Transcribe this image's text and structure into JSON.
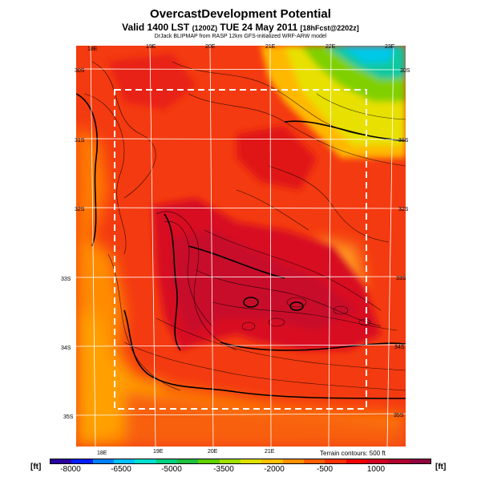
{
  "title": "OvercastDevelopment Potential",
  "subtitle_main": "Valid 1400 LST",
  "subtitle_utc": "(1200Z)",
  "subtitle_date": "TUE 24 May 2011",
  "subtitle_fcst": "[18hFcst@2202z]",
  "credit": "DrJack BLIPMAP from RASP 12km GFS-initialized WRF-ARW model",
  "terrain_note": "Terrain contours: 500 ft",
  "unit_left": "[ft]",
  "unit_right": "[ft]",
  "top_lon_labels": [
    "18E",
    "19E",
    "20E",
    "21E",
    "22E",
    "23E"
  ],
  "bottom_lon_labels": [
    "18E",
    "19E",
    "20E",
    "21E"
  ],
  "left_lat_labels": [
    "30S",
    "31S",
    "32S",
    "33S",
    "34S",
    "35S"
  ],
  "right_lat_labels": [
    "30S",
    "31S",
    "32S",
    "33S",
    "34S",
    "35S"
  ],
  "colorbar": {
    "labels": [
      "-8000",
      "-6500",
      "-5000",
      "-3500",
      "-2000",
      "-500",
      "1000"
    ],
    "colors": [
      "#2a00a0",
      "#0020ff",
      "#0080ff",
      "#00c0ff",
      "#00e0d0",
      "#00d080",
      "#20c040",
      "#60d000",
      "#a0e000",
      "#e0e000",
      "#ffc000",
      "#ff9000",
      "#ff6000",
      "#ff3000",
      "#f00000",
      "#d00020",
      "#b00030",
      "#900040"
    ]
  }
}
